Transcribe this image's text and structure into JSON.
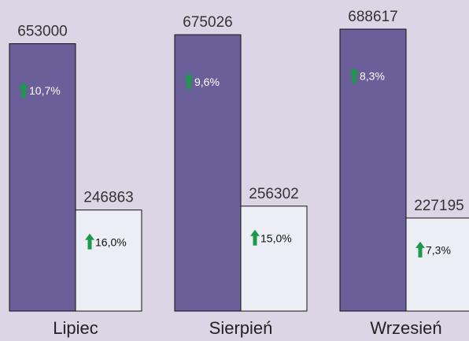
{
  "chart_data": {
    "type": "bar",
    "categories": [
      "Lipiec",
      "Sierpień",
      "Wrzesień"
    ],
    "series": [
      {
        "color": "#6a5f99",
        "values": [
          653000,
          675026,
          688617
        ],
        "changes": [
          {
            "value": 10.7,
            "label": "10,7%"
          },
          {
            "value": 9.6,
            "label": "9,6%"
          },
          {
            "value": 8.3,
            "label": "8,3%"
          }
        ]
      },
      {
        "color": "#ededf6",
        "values": [
          246863,
          256302,
          227195
        ],
        "changes": [
          {
            "value": 16.0,
            "label": "16,0%"
          },
          {
            "value": 15.0,
            "label": "15,0%"
          },
          {
            "value": 7.3,
            "label": "7,3%"
          }
        ]
      }
    ]
  }
}
